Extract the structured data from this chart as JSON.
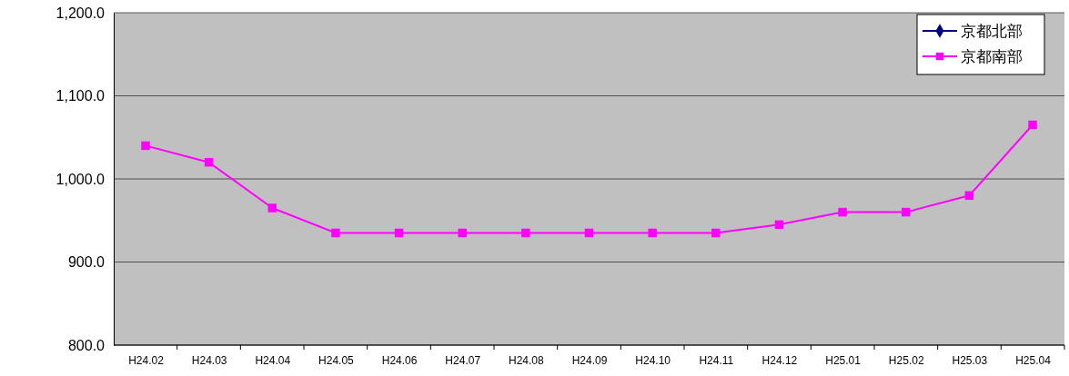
{
  "chart_data": {
    "type": "line",
    "categories": [
      "H24.02",
      "H24.03",
      "H24.04",
      "H24.05",
      "H24.06",
      "H24.07",
      "H24.08",
      "H24.09",
      "H24.10",
      "H24.11",
      "H24.12",
      "H25.01",
      "H25.02",
      "H25.03",
      "H25.04"
    ],
    "series": [
      {
        "name": "京都北部",
        "color": "#000080",
        "marker": "diamond",
        "values": [
          null,
          null,
          null,
          null,
          null,
          null,
          null,
          null,
          null,
          null,
          null,
          null,
          null,
          null,
          null
        ]
      },
      {
        "name": "京都南部",
        "color": "#ff00ff",
        "marker": "square",
        "values": [
          1040,
          1020,
          965,
          935,
          935,
          935,
          935,
          935,
          935,
          935,
          945,
          960,
          960,
          980,
          1065
        ]
      }
    ],
    "ylim": [
      800,
      1200
    ],
    "yticks": [
      {
        "value": 800,
        "label": "800.0"
      },
      {
        "value": 900,
        "label": "900.0"
      },
      {
        "value": 1000,
        "label": "1,000.0"
      },
      {
        "value": 1100,
        "label": "1,100.0"
      },
      {
        "value": 1200,
        "label": "1,200.0"
      }
    ],
    "grid": "y",
    "legend": "top right"
  }
}
